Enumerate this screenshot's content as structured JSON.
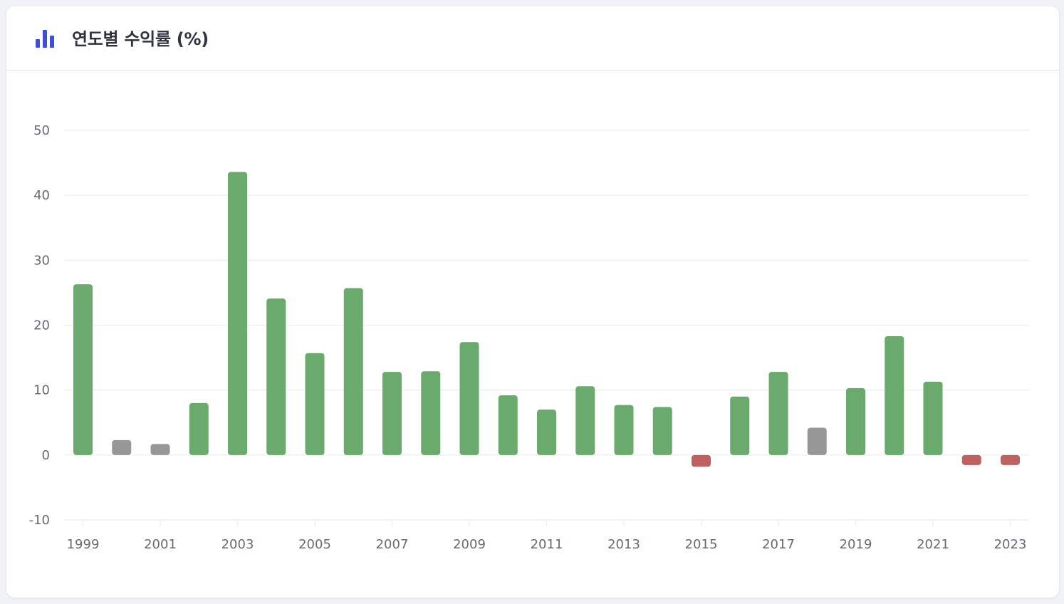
{
  "header": {
    "title": "연도별 수익률 (%)",
    "icon": "bar-chart-icon",
    "icon_color": "#3b4fd8"
  },
  "chart_data": {
    "type": "bar",
    "title": "연도별 수익률 (%)",
    "xlabel": "",
    "ylabel": "",
    "ylim": [
      -10,
      50
    ],
    "yticks": [
      50,
      40,
      30,
      20,
      10,
      0,
      -10
    ],
    "xtick_labels": [
      "1999",
      "2001",
      "2003",
      "2005",
      "2007",
      "2009",
      "2011",
      "2013",
      "2015",
      "2017",
      "2019",
      "2021",
      "2023"
    ],
    "categories": [
      "1999",
      "2000",
      "2001",
      "2002",
      "2003",
      "2004",
      "2005",
      "2006",
      "2007",
      "2008",
      "2009",
      "2010",
      "2011",
      "2012",
      "2013",
      "2014",
      "2015",
      "2016",
      "2017",
      "2018",
      "2019",
      "2020",
      "2021",
      "2022",
      "2023"
    ],
    "values": [
      26.3,
      2.3,
      1.7,
      8.0,
      43.6,
      24.1,
      15.7,
      25.7,
      12.8,
      12.9,
      17.4,
      9.2,
      7.0,
      10.6,
      7.7,
      7.4,
      -1.8,
      9.0,
      12.8,
      4.2,
      10.3,
      18.3,
      11.3,
      -1.4,
      -0.8
    ],
    "grid": true,
    "legend": "none",
    "colors": {
      "positive": "#6aaa6c",
      "neutral": "#979797",
      "negative": "#c06161",
      "grid": "#ececef",
      "axis_text": "#666a73"
    },
    "neutral_threshold": 5
  }
}
